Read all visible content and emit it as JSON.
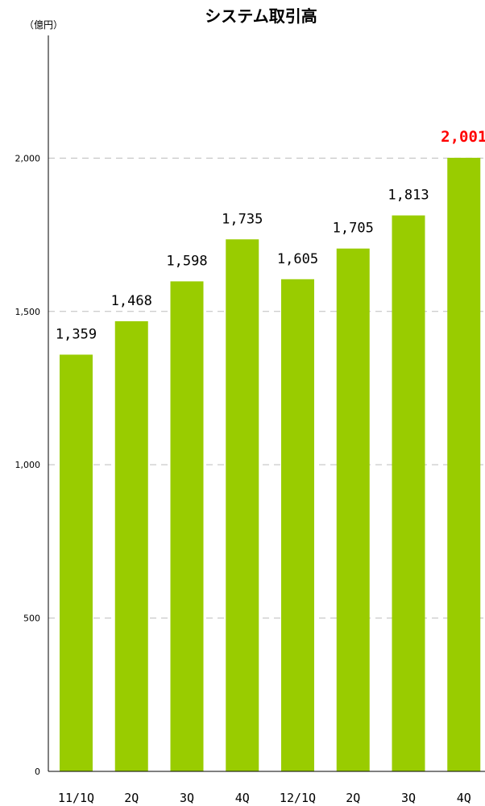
{
  "chart_data": {
    "type": "bar",
    "title": "システム取引高",
    "unit_label": "（億円）",
    "categories": [
      "11/1Q",
      "2Q",
      "3Q",
      "4Q",
      "12/1Q",
      "2Q",
      "3Q",
      "4Q"
    ],
    "values": [
      1359,
      1468,
      1598,
      1735,
      1605,
      1705,
      1813,
      2001
    ],
    "value_labels": [
      "1,359",
      "1,468",
      "1,598",
      "1,735",
      "1,605",
      "1,705",
      "1,813",
      "2,001"
    ],
    "highlight_index": 7,
    "ylim": [
      0,
      2400
    ],
    "yticks": [
      0,
      500,
      1000,
      1500,
      2000
    ],
    "ytick_labels": [
      "0",
      "500",
      "1,000",
      "1,500",
      "2,000"
    ],
    "grid": true,
    "bar_color": "#99cc00",
    "highlight_label_color": "#ff0000"
  }
}
